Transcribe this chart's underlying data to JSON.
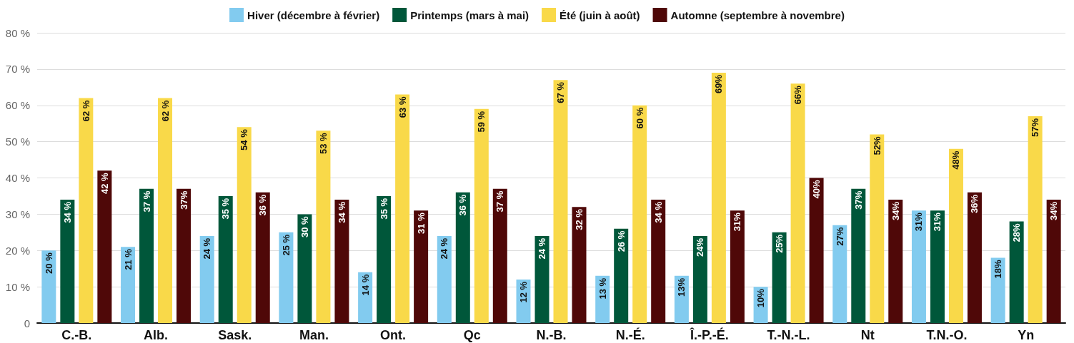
{
  "chart_data": {
    "type": "bar",
    "categories": [
      "C.-B.",
      "Alb.",
      "Sask.",
      "Man.",
      "Ont.",
      "Qc",
      "N.-B.",
      "N.-É.",
      "Î.-P.-É.",
      "T.-N.-L.",
      "Nt",
      "T.N.-O.",
      "Yn"
    ],
    "series": [
      {
        "name": "Hiver (décembre à février)",
        "color": "#82cbef",
        "values": [
          20,
          21,
          24,
          25,
          14,
          24,
          12,
          13,
          13,
          10,
          27,
          31,
          18
        ],
        "value_labels": [
          "20 %",
          "21 %",
          "24 %",
          "25 %",
          "14 %",
          "24 %",
          "12 %",
          "13 %",
          "13%",
          "10%",
          "27%",
          "31%",
          "18%"
        ]
      },
      {
        "name": "Printemps (mars à mai)",
        "color": "#00573a",
        "values": [
          34,
          37,
          35,
          30,
          35,
          36,
          24,
          26,
          24,
          25,
          37,
          31,
          28
        ],
        "value_labels": [
          "34 %",
          "37 %",
          "35 %",
          "30 %",
          "35 %",
          "36 %",
          "24 %",
          "26 %",
          "24%",
          "25%",
          "37%",
          "31%",
          "28%"
        ]
      },
      {
        "name": "Été (juin à août)",
        "color": "#f9d949",
        "values": [
          62,
          62,
          54,
          53,
          63,
          59,
          67,
          60,
          69,
          66,
          52,
          48,
          57
        ],
        "value_labels": [
          "62 %",
          "62 %",
          "54 %",
          "53 %",
          "63 %",
          "59 %",
          "67 %",
          "60 %",
          "69%",
          "66%",
          "52%",
          "48%",
          "57%"
        ]
      },
      {
        "name": "Automne (septembre à novembre)",
        "color": "#4f0808",
        "values": [
          42,
          37,
          36,
          34,
          31,
          37,
          32,
          34,
          31,
          40,
          34,
          36,
          34
        ],
        "value_labels": [
          "42 %",
          "37%",
          "36 %",
          "34 %",
          "31 %",
          "37 %",
          "32 %",
          "34 %",
          "31%",
          "40%",
          "34%",
          "36%",
          "34%"
        ]
      }
    ],
    "ylim": [
      0,
      80
    ],
    "yticks": [
      0,
      {
        "value": 10,
        "label": "10 %"
      },
      {
        "value": 20,
        "label": "20 %"
      },
      {
        "value": 30,
        "label": "30 %"
      },
      {
        "value": 40,
        "label": "40 %"
      },
      {
        "value": 50,
        "label": "50 %"
      },
      {
        "value": 60,
        "label": "60 %"
      },
      {
        "value": 70,
        "label": "70 %"
      },
      {
        "value": 80,
        "label": "80 %"
      }
    ],
    "grid": "y",
    "legend": "top"
  }
}
